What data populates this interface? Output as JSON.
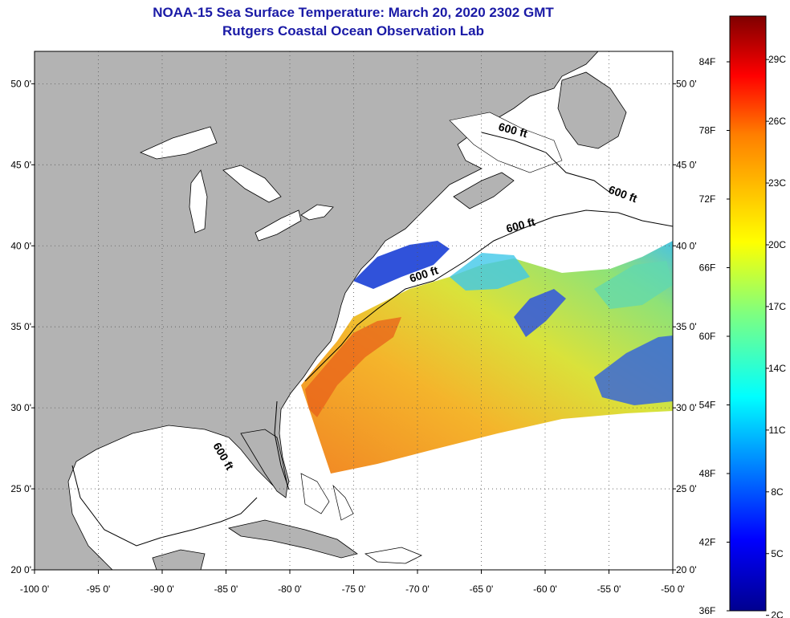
{
  "title": {
    "line1": "NOAA-15 Sea Surface Temperature:  March 20, 2020 2302 GMT",
    "line2": "Rutgers Coastal Ocean Observation Lab"
  },
  "map": {
    "lon_range": [
      -100,
      -50
    ],
    "lat_range": [
      20,
      52
    ],
    "lon_ticks": [
      "-100 0'",
      "-95 0'",
      "-90 0'",
      "-85 0'",
      "-80 0'",
      "-75 0'",
      "-70 0'",
      "-65 0'",
      "-60 0'",
      "-55 0'",
      "-50 0'"
    ],
    "lat_ticks": [
      "50 0'",
      "45 0'",
      "40 0'",
      "35 0'",
      "30 0'",
      "25 0'",
      "20 0'"
    ],
    "contour_labels": [
      "600 ft",
      "600 ft",
      "600 ft",
      "600 ft",
      "600 ft"
    ]
  },
  "colorbar": {
    "fahrenheit_labels": [
      "84F",
      "78F",
      "72F",
      "66F",
      "60F",
      "54F",
      "48F",
      "42F",
      "36F"
    ],
    "celsius_labels": [
      "29C",
      "26C",
      "23C",
      "20C",
      "17C",
      "14C",
      "11C",
      "8C",
      "5C",
      "2C"
    ]
  },
  "colors": {
    "land": "#b3b3b3",
    "title": "#1a1aa6",
    "cold": "#1a3fd6",
    "warm": "#f07a1a"
  }
}
